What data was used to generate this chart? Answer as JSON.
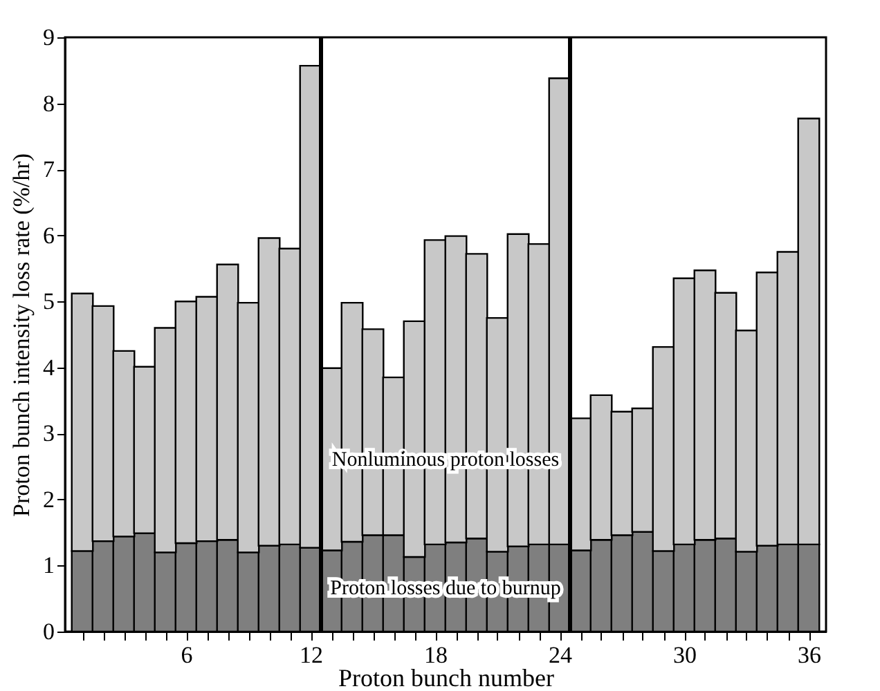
{
  "chart_data": {
    "type": "bar",
    "stacked": true,
    "xlabel": "Proton bunch number",
    "ylabel": "Proton bunch intensity loss rate (%/hr)",
    "x": [
      1,
      2,
      3,
      4,
      5,
      6,
      7,
      8,
      9,
      10,
      11,
      12,
      13,
      14,
      15,
      16,
      17,
      18,
      19,
      20,
      21,
      22,
      23,
      24,
      25,
      26,
      27,
      28,
      29,
      30,
      31,
      32,
      33,
      34,
      35,
      36
    ],
    "series": [
      {
        "name": "Proton losses due to burnup",
        "color": "#7f7f7f",
        "values": [
          1.22,
          1.37,
          1.44,
          1.49,
          1.2,
          1.34,
          1.37,
          1.39,
          1.2,
          1.3,
          1.32,
          1.27,
          1.23,
          1.36,
          1.46,
          1.46,
          1.13,
          1.32,
          1.35,
          1.41,
          1.21,
          1.29,
          1.32,
          1.32,
          1.23,
          1.39,
          1.46,
          1.51,
          1.22,
          1.32,
          1.39,
          1.41,
          1.21,
          1.3,
          1.32,
          1.32
        ]
      },
      {
        "name": "Nonluminous proton losses",
        "color": "#c8c8c8",
        "values": [
          3.9,
          3.56,
          2.81,
          2.52,
          3.4,
          3.66,
          3.7,
          4.17,
          3.78,
          4.66,
          4.48,
          7.3,
          2.76,
          3.62,
          3.12,
          2.39,
          3.57,
          4.61,
          4.64,
          4.31,
          3.54,
          4.73,
          4.55,
          7.06,
          2.0,
          2.19,
          1.87,
          1.87,
          3.09,
          4.03,
          4.08,
          3.72,
          3.35,
          4.14,
          4.43,
          6.45
        ]
      }
    ],
    "xlim": [
      0.5,
      36.5
    ],
    "xticks": [
      {
        "value": 1,
        "label": null
      },
      {
        "value": 2,
        "label": null
      },
      {
        "value": 3,
        "label": null
      },
      {
        "value": 4,
        "label": null
      },
      {
        "value": 5,
        "label": null
      },
      6,
      {
        "value": 7,
        "label": null
      },
      {
        "value": 8,
        "label": null
      },
      {
        "value": 9,
        "label": null
      },
      {
        "value": 10,
        "label": null
      },
      {
        "value": 11,
        "label": null
      },
      12,
      {
        "value": 13,
        "label": null
      },
      {
        "value": 14,
        "label": null
      },
      {
        "value": 15,
        "label": null
      },
      {
        "value": 16,
        "label": null
      },
      {
        "value": 17,
        "label": null
      },
      18,
      {
        "value": 19,
        "label": null
      },
      {
        "value": 20,
        "label": null
      },
      {
        "value": 21,
        "label": null
      },
      {
        "value": 22,
        "label": null
      },
      {
        "value": 23,
        "label": null
      },
      24,
      {
        "value": 25,
        "label": null
      },
      {
        "value": 26,
        "label": null
      },
      {
        "value": 27,
        "label": null
      },
      {
        "value": 28,
        "label": null
      },
      {
        "value": 29,
        "label": null
      },
      30,
      {
        "value": 31,
        "label": null
      },
      {
        "value": 32,
        "label": null
      },
      {
        "value": 33,
        "label": null
      },
      {
        "value": 34,
        "label": null
      },
      {
        "value": 35,
        "label": null
      },
      36
    ],
    "ylim": [
      0,
      9
    ],
    "yticks": [
      0,
      1,
      2,
      3,
      4,
      5,
      6,
      7,
      8,
      9
    ],
    "ref_lines": [
      {
        "axis": "x",
        "value": 12.5,
        "color": "#000000"
      },
      {
        "axis": "x",
        "value": 24.5,
        "color": "#000000"
      }
    ],
    "grid": false,
    "legend": false
  }
}
